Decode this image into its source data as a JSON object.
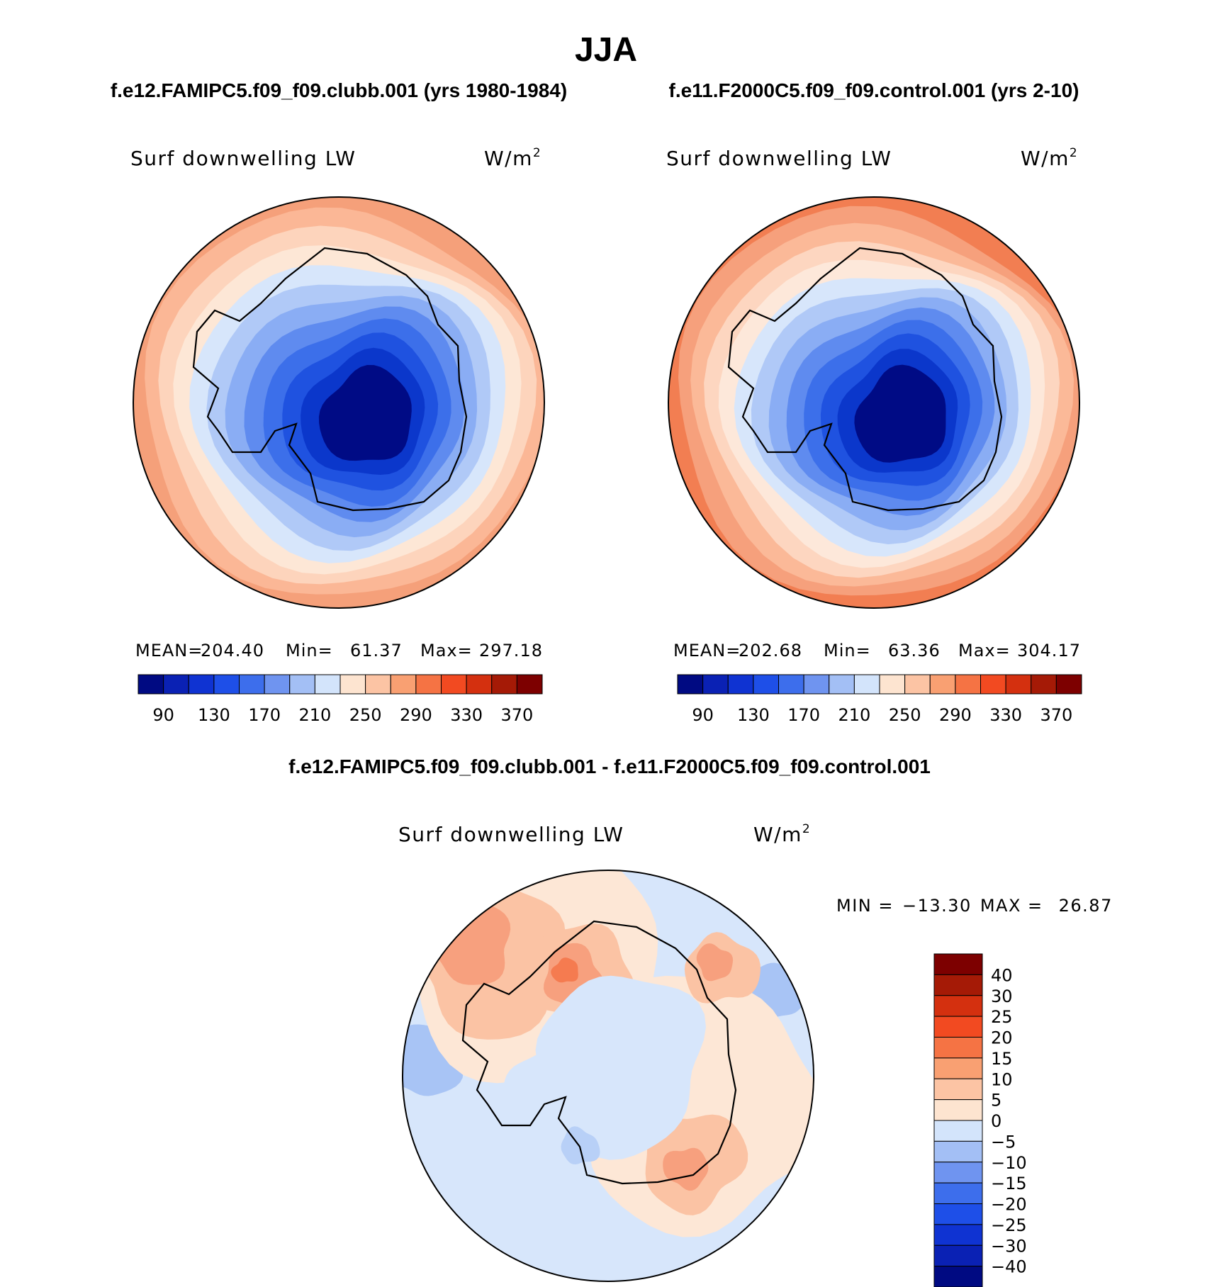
{
  "title": "JJA",
  "chart_data": [
    {
      "type": "polar-contour-map",
      "case_title": "f.e12.FAMIPC5.f09_f09.clubb.001 (yrs 1980-1984)",
      "variable": "Surf downwelling LW",
      "units": "W/m",
      "units_exp": "2",
      "stats": [
        {
          "label": "MEAN=",
          "value": "204.40"
        },
        {
          "label": "Min=",
          "value": "61.37"
        },
        {
          "label": "Max=",
          "value": "297.18"
        }
      ],
      "colorbar_labels": [
        "90",
        "130",
        "170",
        "210",
        "250",
        "290",
        "330",
        "370"
      ],
      "colorbar_colors": [
        "#000a82",
        "#0a21b4",
        "#0f33d2",
        "#1e4fe8",
        "#3d6eec",
        "#6f94f0",
        "#a3bff5",
        "#d3e4fb",
        "#fde4d0",
        "#fcc4a4",
        "#f9a072",
        "#f57344",
        "#f24a21",
        "#d4300f",
        "#a51a06",
        "#7d0000"
      ],
      "levels": [
        90,
        110,
        130,
        150,
        170,
        190,
        210,
        230,
        250,
        270,
        290,
        310,
        330,
        350,
        370
      ],
      "map_colors": [
        "#f5a07a",
        "#fbb796",
        "#fdd4bc",
        "#fde7d6",
        "#d7e6fb",
        "#b0c9f7",
        "#8aadf4",
        "#5f8bef",
        "#3c6fea",
        "#1f52e0",
        "#0b37cb",
        "#000b85"
      ]
    },
    {
      "type": "polar-contour-map",
      "case_title": "f.e11.F2000C5.f09_f09.control.001 (yrs 2-10)",
      "variable": "Surf downwelling LW",
      "units": "W/m",
      "units_exp": "2",
      "stats": [
        {
          "label": "MEAN=",
          "value": "202.68"
        },
        {
          "label": "Min=",
          "value": "63.36"
        },
        {
          "label": "Max=",
          "value": "304.17"
        }
      ],
      "colorbar_labels": [
        "90",
        "130",
        "170",
        "210",
        "250",
        "290",
        "330",
        "370"
      ],
      "colorbar_colors": [
        "#000a82",
        "#0a21b4",
        "#0f33d2",
        "#1e4fe8",
        "#3d6eec",
        "#6f94f0",
        "#a3bff5",
        "#d3e4fb",
        "#fde4d0",
        "#fcc4a4",
        "#f9a072",
        "#f57344",
        "#f24a21",
        "#d4300f",
        "#a51a06",
        "#7d0000"
      ],
      "levels": [
        90,
        110,
        130,
        150,
        170,
        190,
        210,
        230,
        250,
        270,
        290,
        310,
        330,
        350,
        370
      ],
      "map_colors": [
        "#f27e52",
        "#f6a07c",
        "#fbb998",
        "#fdd6c0",
        "#fde8da",
        "#d7e6fb",
        "#b0c9f7",
        "#8aadf4",
        "#5f8bef",
        "#3c6fea",
        "#1f52e0",
        "#0b37cb",
        "#000b85"
      ]
    },
    {
      "type": "polar-contour-map-difference",
      "case_title": "f.e12.FAMIPC5.f09_f09.clubb.001 - f.e11.F2000C5.f09_f09.control.001",
      "variable": "Surf downwelling LW",
      "units": "W/m",
      "units_exp": "2",
      "min_label": "MIN =",
      "min_value": "−13.30",
      "max_label": "MAX =",
      "max_value": "26.87",
      "colorbar_labels": [
        "40",
        "30",
        "25",
        "20",
        "15",
        "10",
        "5",
        "0",
        "−5",
        "−10",
        "−15",
        "−20",
        "−25",
        "−30",
        "−40"
      ],
      "colorbar_colors": [
        "#7d0000",
        "#a51a06",
        "#d4300f",
        "#f24a21",
        "#f57344",
        "#f9a072",
        "#fcc4a4",
        "#fde4d0",
        "#d3e4fb",
        "#a3bff5",
        "#6f94f0",
        "#3d6eec",
        "#1e4fe8",
        "#0f33d2",
        "#0a21b4",
        "#000a82"
      ],
      "levels": [
        -40,
        -30,
        -25,
        -20,
        -15,
        -10,
        -5,
        0,
        5,
        10,
        15,
        20,
        25,
        30,
        40
      ]
    }
  ]
}
